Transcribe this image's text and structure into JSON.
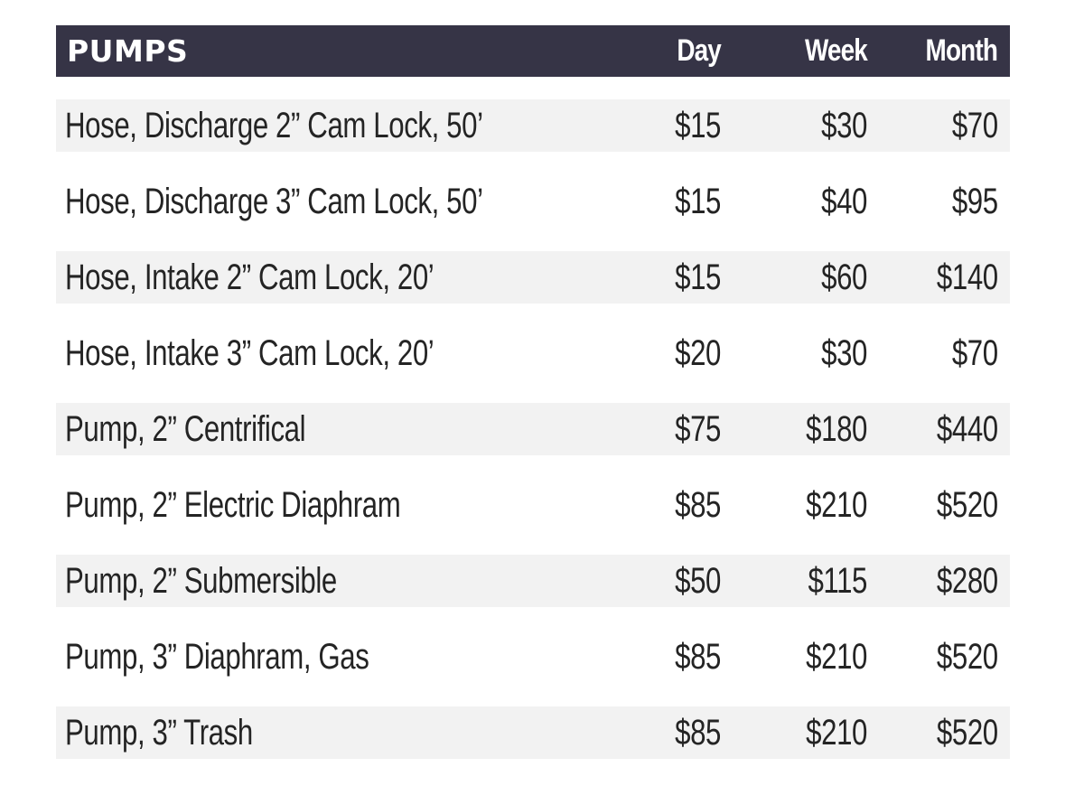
{
  "table": {
    "title": "PUMPS",
    "columns": [
      "Day",
      "Week",
      "Month"
    ],
    "rows": [
      {
        "item": "Hose, Discharge 2” Cam Lock, 50’",
        "day": "$15",
        "week": "$30",
        "month": "$70"
      },
      {
        "item": "Hose, Discharge 3” Cam Lock, 50’",
        "day": "$15",
        "week": "$40",
        "month": "$95"
      },
      {
        "item": "Hose, Intake 2” Cam Lock, 20’",
        "day": "$15",
        "week": "$60",
        "month": "$140"
      },
      {
        "item": "Hose, Intake 3” Cam Lock, 20’",
        "day": "$20",
        "week": "$30",
        "month": "$70"
      },
      {
        "item": "Pump, 2” Centrifical",
        "day": "$75",
        "week": "$180",
        "month": "$440"
      },
      {
        "item": "Pump, 2” Electric Diaphram",
        "day": "$85",
        "week": "$210",
        "month": "$520"
      },
      {
        "item": "Pump, 2” Submersible",
        "day": "$50",
        "week": "$115",
        "month": "$280"
      },
      {
        "item": "Pump, 3” Diaphram, Gas",
        "day": "$85",
        "week": "$210",
        "month": "$520"
      },
      {
        "item": "Pump, 3” Trash",
        "day": "$85",
        "week": "$210",
        "month": "$520"
      }
    ]
  },
  "colors": {
    "header_bg": "#363446",
    "header_text": "#ffffff",
    "stripe_bg": "#f2f2f2",
    "body_text": "#242424"
  }
}
